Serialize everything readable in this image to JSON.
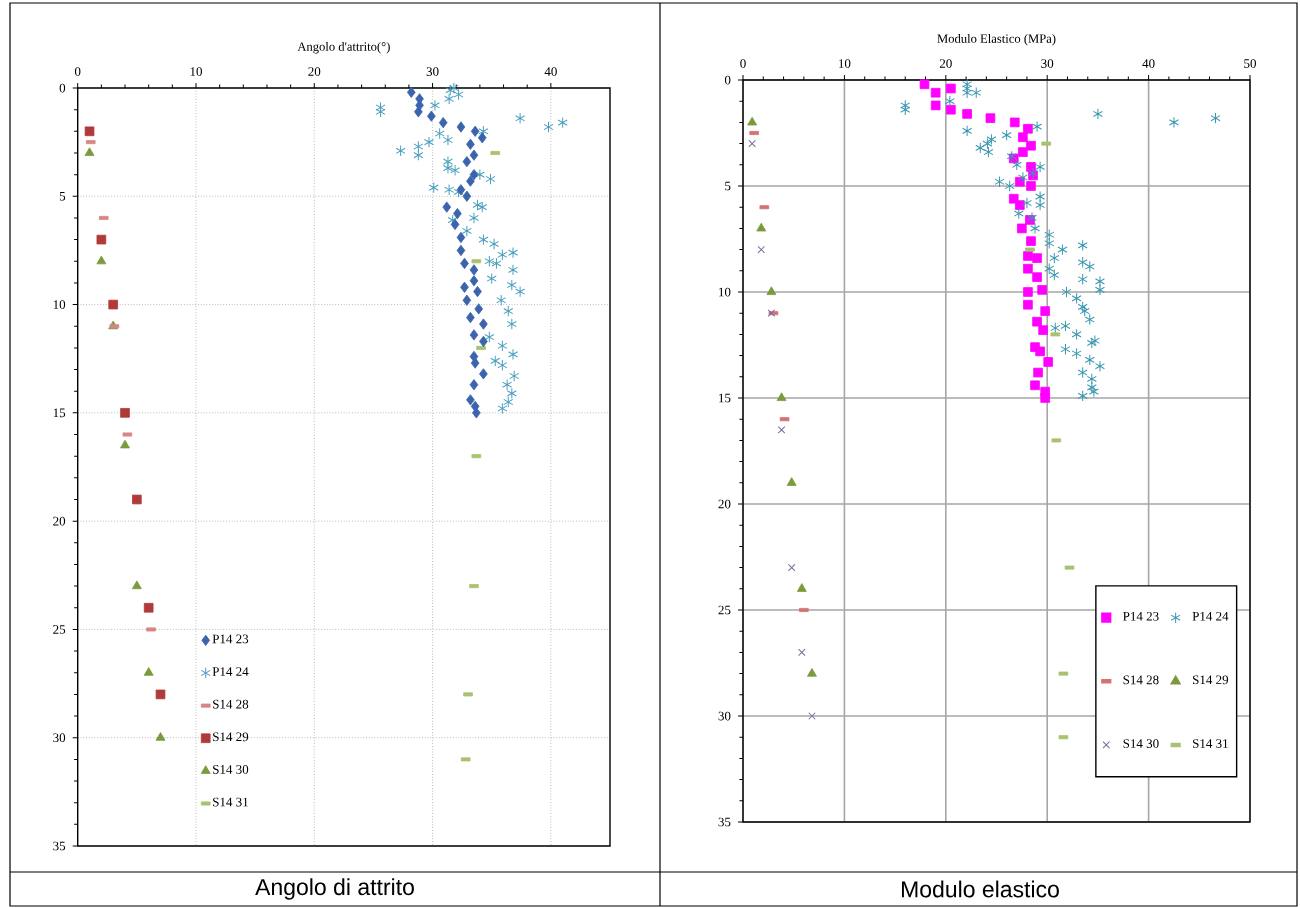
{
  "chart_data": [
    {
      "type": "scatter",
      "xlabel": "Angolo d'attrito(°)",
      "annotations": [
        "Angolo di attrito"
      ],
      "xlim": [
        0,
        45
      ],
      "xticks": [
        0,
        10,
        20,
        30,
        40
      ],
      "ylim": [
        35,
        0
      ],
      "yticks": [
        0,
        5,
        10,
        15,
        20,
        25,
        30,
        35
      ],
      "grid": true,
      "legend": "bottom left",
      "series": [
        {
          "name": "P14 23",
          "color": "#3b64ad",
          "marker": "diamond",
          "x": [
            28.2,
            28.9,
            28.9,
            28.8,
            29.9,
            30.9,
            32.4,
            33.6,
            34.2,
            33.2,
            33.5,
            32.9,
            33.5,
            33.2,
            32.4,
            32.9,
            31.2,
            32.1,
            31.9,
            32.4,
            32.4,
            32.7,
            33.5,
            33.5,
            32.7,
            33.8,
            32.9,
            33.9,
            33.2,
            34.3,
            33.5,
            34.3,
            33.5,
            33.6,
            34.3,
            33.5,
            33.2,
            33.6,
            33.7
          ],
          "values": [
            0.2,
            0.5,
            0.8,
            1.1,
            1.3,
            1.6,
            1.8,
            2.0,
            2.3,
            2.6,
            3.1,
            3.4,
            4.0,
            4.3,
            4.7,
            5.0,
            5.5,
            5.8,
            6.3,
            6.9,
            7.5,
            8.1,
            8.4,
            8.9,
            9.2,
            9.4,
            9.8,
            10.2,
            10.6,
            10.9,
            11.4,
            11.7,
            12.4,
            12.7,
            13.2,
            13.7,
            14.4,
            14.7,
            15.0
          ]
        },
        {
          "name": "P14 24",
          "color": "#4a9fbf",
          "marker": "cross",
          "x": [
            31.8,
            31.5,
            32.2,
            31.4,
            30.2,
            25.6,
            25.6,
            37.4,
            41.0,
            39.8,
            34.3,
            30.6,
            31.3,
            29.7,
            28.8,
            27.3,
            28.8,
            31.3,
            31.3,
            31.9,
            34.0,
            34.9,
            30.1,
            31.4,
            32.2,
            33.8,
            34.2,
            33.5,
            31.7,
            32.9,
            34.3,
            35.2,
            36.8,
            35.9,
            34.8,
            35.4,
            36.8,
            35.0,
            36.7,
            37.4,
            35.8,
            36.4,
            36.7,
            34.8,
            35.9,
            36.8,
            35.3,
            35.9,
            36.9,
            36.3,
            36.7,
            36.4,
            35.9
          ],
          "values": [
            0.0,
            0.1,
            0.3,
            0.5,
            0.8,
            0.9,
            1.1,
            1.4,
            1.6,
            1.8,
            2.0,
            2.1,
            2.4,
            2.5,
            2.7,
            2.9,
            3.1,
            3.4,
            3.7,
            3.8,
            4.0,
            4.2,
            4.6,
            4.7,
            4.8,
            5.4,
            5.5,
            6.0,
            6.1,
            6.6,
            7.0,
            7.2,
            7.6,
            7.7,
            8.0,
            8.1,
            8.4,
            8.8,
            9.1,
            9.4,
            9.8,
            10.3,
            10.9,
            11.5,
            11.9,
            12.3,
            12.6,
            12.8,
            13.3,
            13.7,
            14.1,
            14.5,
            14.8
          ]
        },
        {
          "name": "S14 28",
          "color": "#d98585",
          "marker": "square",
          "x": [
            1.1,
            2.2,
            3.1,
            4.2,
            6.2
          ],
          "values": [
            2.5,
            6,
            11,
            16,
            25
          ]
        },
        {
          "name": "S14 29",
          "color": "#b03a3a",
          "marker": "square",
          "x": [
            1,
            2,
            3,
            4,
            5,
            6,
            7
          ],
          "values": [
            2,
            7,
            10,
            15,
            19,
            24,
            28
          ]
        },
        {
          "name": "S14 30",
          "color": "#7a9a3c",
          "marker": "triangle",
          "x": [
            1,
            2,
            3,
            4,
            5,
            6,
            7
          ],
          "values": [
            3,
            8,
            11,
            16.5,
            23,
            27,
            30
          ]
        },
        {
          "name": "S14 31",
          "color": "#a9c26f",
          "marker": "square",
          "x": [
            35.3,
            33.7,
            34.1,
            33.7,
            33.5,
            33.0,
            32.8
          ],
          "values": [
            3,
            8,
            12,
            17,
            23,
            28,
            31
          ]
        }
      ]
    },
    {
      "type": "scatter",
      "xlabel": "Modulo Elastico (MPa)",
      "annotations": [
        "Modulo elastico"
      ],
      "xlim": [
        0,
        50
      ],
      "xticks": [
        0,
        10,
        20,
        30,
        40,
        50
      ],
      "ylim": [
        35,
        0
      ],
      "yticks": [
        0,
        5,
        10,
        15,
        20,
        25,
        30,
        35
      ],
      "grid": true,
      "legend": "bottom right",
      "series": [
        {
          "name": "P14 23",
          "color": "#ff00ff",
          "marker": "square",
          "x": [
            17.9,
            19.0,
            19.0,
            20.5,
            20.5,
            22.1,
            24.4,
            26.8,
            28.1,
            27.6,
            28.4,
            27.6,
            26.7,
            28.4,
            28.6,
            27.3,
            28.4,
            26.7,
            27.3,
            28.3,
            27.5,
            28.4,
            28.1,
            29.0,
            28.1,
            29.0,
            29.5,
            28.1,
            28.1,
            29.8,
            29.0,
            29.6,
            28.8,
            29.3,
            30.1,
            29.1,
            28.8,
            29.8,
            29.8
          ],
          "values": [
            0.2,
            0.6,
            1.2,
            0.4,
            1.4,
            1.6,
            1.8,
            2.0,
            2.3,
            2.7,
            3.1,
            3.4,
            3.7,
            4.1,
            4.5,
            4.8,
            5.0,
            5.6,
            5.9,
            6.6,
            7.0,
            7.6,
            8.3,
            8.4,
            8.9,
            9.3,
            9.9,
            10.0,
            10.6,
            10.9,
            11.4,
            11.8,
            12.6,
            12.8,
            13.3,
            13.8,
            14.4,
            14.7,
            15.0
          ]
        },
        {
          "name": "P14 24",
          "color": "#3a97b0",
          "marker": "cross",
          "x": [
            22.1,
            22.1,
            22.1,
            23.0,
            20.4,
            16.0,
            16.0,
            35.0,
            46.6,
            42.5,
            29.0,
            22.1,
            26.0,
            24.5,
            24.1,
            23.4,
            24.2,
            26.5,
            27.0,
            29.3,
            28.6,
            27.6,
            25.3,
            26.3,
            29.3,
            28.0,
            29.3,
            27.2,
            28.5,
            28.8,
            30.2,
            30.2,
            33.5,
            31.5,
            30.7,
            33.5,
            34.2,
            30.2,
            30.7,
            33.5,
            35.2,
            35.2,
            31.9,
            32.9,
            33.5,
            33.7,
            34.2,
            31.8,
            30.8,
            32.9,
            34.7,
            34.4,
            31.8,
            32.9,
            34.2,
            35.2,
            33.5,
            34.4,
            34.4,
            34.6,
            33.5
          ],
          "values": [
            0.2,
            0.4,
            0.6,
            0.6,
            1.0,
            1.2,
            1.4,
            1.6,
            1.8,
            2.0,
            2.2,
            2.4,
            2.6,
            2.8,
            3.0,
            3.2,
            3.4,
            3.6,
            4.0,
            4.1,
            4.4,
            4.6,
            4.8,
            5.0,
            5.5,
            5.8,
            5.9,
            6.3,
            6.5,
            7.0,
            7.3,
            7.7,
            7.8,
            8.0,
            8.4,
            8.6,
            8.8,
            8.9,
            9.2,
            9.4,
            9.5,
            9.9,
            10.0,
            10.3,
            10.7,
            10.9,
            11.3,
            11.6,
            11.7,
            12.0,
            12.3,
            12.4,
            12.7,
            12.9,
            13.2,
            13.5,
            13.8,
            14.1,
            14.5,
            14.7,
            14.9
          ]
        },
        {
          "name": "S14 28",
          "color": "#d47272",
          "marker": "square",
          "x": [
            1.1,
            2.1,
            3.0,
            4.1,
            6.0
          ],
          "values": [
            2.5,
            6,
            11,
            16,
            25
          ]
        },
        {
          "name": "S14 29",
          "color": "#7a9a3c",
          "marker": "triangle",
          "x": [
            0.9,
            1.8,
            2.8,
            3.8,
            4.8,
            5.8,
            6.8
          ],
          "values": [
            2,
            7,
            10,
            15,
            19,
            24,
            28
          ]
        },
        {
          "name": "S14 30",
          "color": "#7b6aa3",
          "marker": "cross",
          "x": [
            0.9,
            1.8,
            2.8,
            3.8,
            4.8,
            5.8,
            6.8
          ],
          "values": [
            3,
            8,
            11,
            16.5,
            23,
            27,
            30
          ]
        },
        {
          "name": "S14 31",
          "color": "#a9c26f",
          "marker": "square",
          "x": [
            29.9,
            28.3,
            30.8,
            30.9,
            32.2,
            31.6,
            31.6
          ],
          "values": [
            3,
            8,
            12,
            17,
            23,
            28,
            31
          ]
        }
      ]
    }
  ]
}
